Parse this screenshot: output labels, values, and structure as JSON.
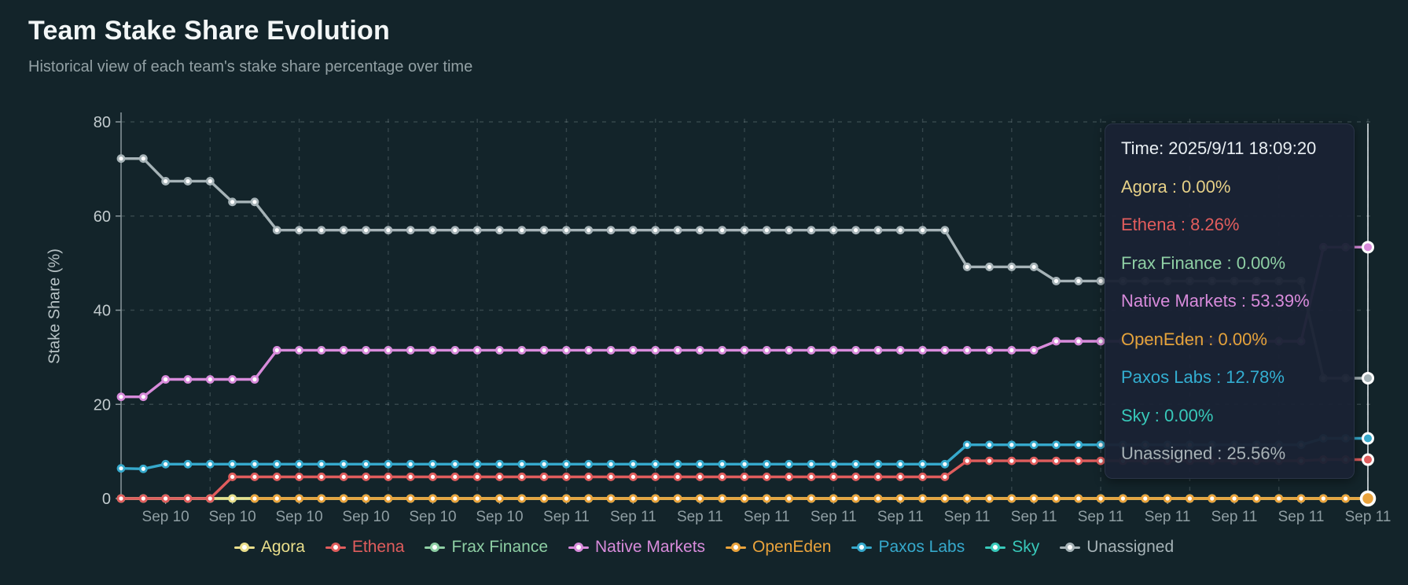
{
  "header": {
    "title": "Team Stake Share Evolution",
    "subtitle": "Historical view of each team's stake share percentage over time"
  },
  "colors": {
    "background": "#13242a",
    "axis_line": "#8a979c",
    "grid_line": "rgba(176,190,197,0.22)",
    "y_tick_text": "#c2cbce",
    "x_tick_text": "#8f9ea3",
    "crosshair": "#e2e9ed",
    "tooltip_bg": "rgba(26,34,52,0.96)"
  },
  "chart_data": {
    "type": "line",
    "title": "Team Stake Share Evolution",
    "xlabel": "",
    "ylabel": "Stake Share (%)",
    "ylim": [
      0,
      80
    ],
    "yticks": [
      0,
      20,
      40,
      60,
      80
    ],
    "grid": true,
    "legend_position": "bottom",
    "n_points": 57,
    "x_tick_start_index": 2,
    "x_tick_every": 3,
    "x_tick_labels": [
      "Sep 10",
      "Sep 10",
      "Sep 10",
      "Sep 10",
      "Sep 10",
      "Sep 10",
      "Sep 11",
      "Sep 11",
      "Sep 11",
      "Sep 11",
      "Sep 11",
      "Sep 11",
      "Sep 11",
      "Sep 11",
      "Sep 11",
      "Sep 11",
      "Sep 11",
      "Sep 11",
      "Sep 11"
    ],
    "v_grid_every": 4,
    "z_order": [
      "Frax Finance",
      "Sky",
      "Agora",
      "OpenEden",
      "Ethena",
      "Paxos Labs",
      "Native Markets",
      "Unassigned"
    ],
    "series": [
      {
        "name": "Agora",
        "color": "#e9de8b",
        "values": [
          0,
          0,
          0,
          0,
          0,
          0,
          0,
          0,
          0,
          0,
          0,
          0,
          0,
          0,
          0,
          0,
          0,
          0,
          0,
          0,
          0,
          0,
          0,
          0,
          0,
          0,
          0,
          0,
          0,
          0,
          0,
          0,
          0,
          0,
          0,
          0,
          0,
          0,
          0,
          0,
          0,
          0,
          0,
          0,
          0,
          0,
          0,
          0,
          0,
          0,
          0,
          0,
          0,
          0,
          0,
          0,
          0
        ]
      },
      {
        "name": "Ethena",
        "color": "#e05d5d",
        "values": [
          0,
          0,
          0,
          0,
          0,
          4.6,
          4.6,
          4.6,
          4.6,
          4.6,
          4.6,
          4.6,
          4.6,
          4.6,
          4.6,
          4.6,
          4.6,
          4.6,
          4.6,
          4.6,
          4.6,
          4.6,
          4.6,
          4.6,
          4.6,
          4.6,
          4.6,
          4.6,
          4.6,
          4.6,
          4.6,
          4.6,
          4.6,
          4.6,
          4.6,
          4.6,
          4.6,
          4.6,
          8,
          8,
          8,
          8,
          8,
          8,
          8,
          8,
          8,
          8,
          8,
          8,
          8,
          8,
          8,
          8,
          8.26,
          8.26,
          8.26
        ]
      },
      {
        "name": "Frax Finance",
        "color": "#8ecfa4",
        "values": [
          0,
          0,
          0,
          0,
          0,
          0,
          0,
          0,
          0,
          0,
          0,
          0,
          0,
          0,
          0,
          0,
          0,
          0,
          0,
          0,
          0,
          0,
          0,
          0,
          0,
          0,
          0,
          0,
          0,
          0,
          0,
          0,
          0,
          0,
          0,
          0,
          0,
          0,
          0,
          0,
          0,
          0,
          0,
          0,
          0,
          0,
          0,
          0,
          0,
          0,
          0,
          0,
          0,
          0,
          0,
          0,
          0
        ]
      },
      {
        "name": "Native Markets",
        "color": "#d88bdb",
        "values": [
          21.6,
          21.6,
          25.3,
          25.3,
          25.3,
          25.3,
          25.3,
          31.5,
          31.5,
          31.5,
          31.5,
          31.5,
          31.5,
          31.5,
          31.5,
          31.5,
          31.5,
          31.5,
          31.5,
          31.5,
          31.5,
          31.5,
          31.5,
          31.5,
          31.5,
          31.5,
          31.5,
          31.5,
          31.5,
          31.5,
          31.5,
          31.5,
          31.5,
          31.5,
          31.5,
          31.5,
          31.5,
          31.5,
          31.5,
          31.5,
          31.5,
          31.5,
          33.4,
          33.4,
          33.4,
          33.4,
          33.4,
          33.4,
          33.4,
          33.4,
          33.4,
          33.4,
          33.4,
          33.4,
          53.39,
          53.39,
          53.39
        ]
      },
      {
        "name": "OpenEden",
        "color": "#eaa33c",
        "values": [
          null,
          null,
          null,
          null,
          null,
          null,
          0,
          0,
          0,
          0,
          0,
          0,
          0,
          0,
          0,
          0,
          0,
          0,
          0,
          0,
          0,
          0,
          0,
          0,
          0,
          0,
          0,
          0,
          0,
          0,
          0,
          0,
          0,
          0,
          0,
          0,
          0,
          0,
          0,
          0,
          0,
          0,
          0,
          0,
          0,
          0,
          0,
          0,
          0,
          0,
          0,
          0,
          0,
          0,
          0,
          0,
          0
        ]
      },
      {
        "name": "Paxos Labs",
        "color": "#36a9cc",
        "values": [
          6.4,
          6.3,
          7.3,
          7.3,
          7.3,
          7.3,
          7.3,
          7.3,
          7.3,
          7.3,
          7.3,
          7.3,
          7.3,
          7.3,
          7.3,
          7.3,
          7.3,
          7.3,
          7.3,
          7.3,
          7.3,
          7.3,
          7.3,
          7.3,
          7.3,
          7.3,
          7.3,
          7.3,
          7.3,
          7.3,
          7.3,
          7.3,
          7.3,
          7.3,
          7.3,
          7.3,
          7.3,
          7.3,
          11.4,
          11.4,
          11.4,
          11.4,
          11.4,
          11.4,
          11.4,
          11.4,
          11.4,
          11.4,
          11.4,
          11.4,
          11.4,
          11.4,
          11.4,
          11.4,
          12.78,
          12.78,
          12.78
        ]
      },
      {
        "name": "Sky",
        "color": "#38c9ba",
        "values": [
          0,
          0,
          0,
          0,
          0,
          0,
          0,
          0,
          0,
          0,
          0,
          0,
          0,
          0,
          0,
          0,
          0,
          0,
          0,
          0,
          0,
          0,
          0,
          0,
          0,
          0,
          0,
          0,
          0,
          0,
          0,
          0,
          0,
          0,
          0,
          0,
          0,
          0,
          0,
          0,
          0,
          0,
          0,
          0,
          0,
          0,
          0,
          0,
          0,
          0,
          0,
          0,
          0,
          0,
          0,
          0,
          0
        ]
      },
      {
        "name": "Unassigned",
        "color": "#a6b3b7",
        "values": [
          72.2,
          72.2,
          67.4,
          67.4,
          67.4,
          63,
          63,
          57,
          57,
          57,
          57,
          57,
          57,
          57,
          57,
          57,
          57,
          57,
          57,
          57,
          57,
          57,
          57,
          57,
          57,
          57,
          57,
          57,
          57,
          57,
          57,
          57,
          57,
          57,
          57,
          57,
          57,
          57,
          49.2,
          49.2,
          49.2,
          49.2,
          46.2,
          46.2,
          46.2,
          46.2,
          46.2,
          46.2,
          46.2,
          46.2,
          46.2,
          46.2,
          46.2,
          46.2,
          25.56,
          25.56,
          25.56
        ]
      }
    ]
  },
  "tooltip": {
    "time_label": "Time: 2025/9/11 18:09:20",
    "separator": " : ",
    "x_index": 56,
    "rows": [
      {
        "label": "Agora",
        "value": "0.00%",
        "color": "#e6d087"
      },
      {
        "label": "Ethena",
        "value": "8.26%",
        "color": "#e25d5d"
      },
      {
        "label": "Frax Finance",
        "value": "0.00%",
        "color": "#8ecfa4"
      },
      {
        "label": "Native Markets",
        "value": "53.39%",
        "color": "#d88bdb"
      },
      {
        "label": "OpenEden",
        "value": "0.00%",
        "color": "#e5a33b"
      },
      {
        "label": "Paxos Labs",
        "value": "12.78%",
        "color": "#33aed1"
      },
      {
        "label": "Sky",
        "value": "0.00%",
        "color": "#38c9ba"
      },
      {
        "label": "Unassigned",
        "value": "25.56%",
        "color": "#a8b2b6"
      }
    ],
    "marked_points": [
      {
        "series": "Native Markets",
        "value": 53.39,
        "large": false
      },
      {
        "series": "Unassigned",
        "value": 25.56,
        "large": false
      },
      {
        "series": "Paxos Labs",
        "value": 12.78,
        "large": false
      },
      {
        "series": "Ethena",
        "value": 8.26,
        "large": false
      },
      {
        "series": "OpenEden",
        "value": 0,
        "large": true
      }
    ]
  }
}
